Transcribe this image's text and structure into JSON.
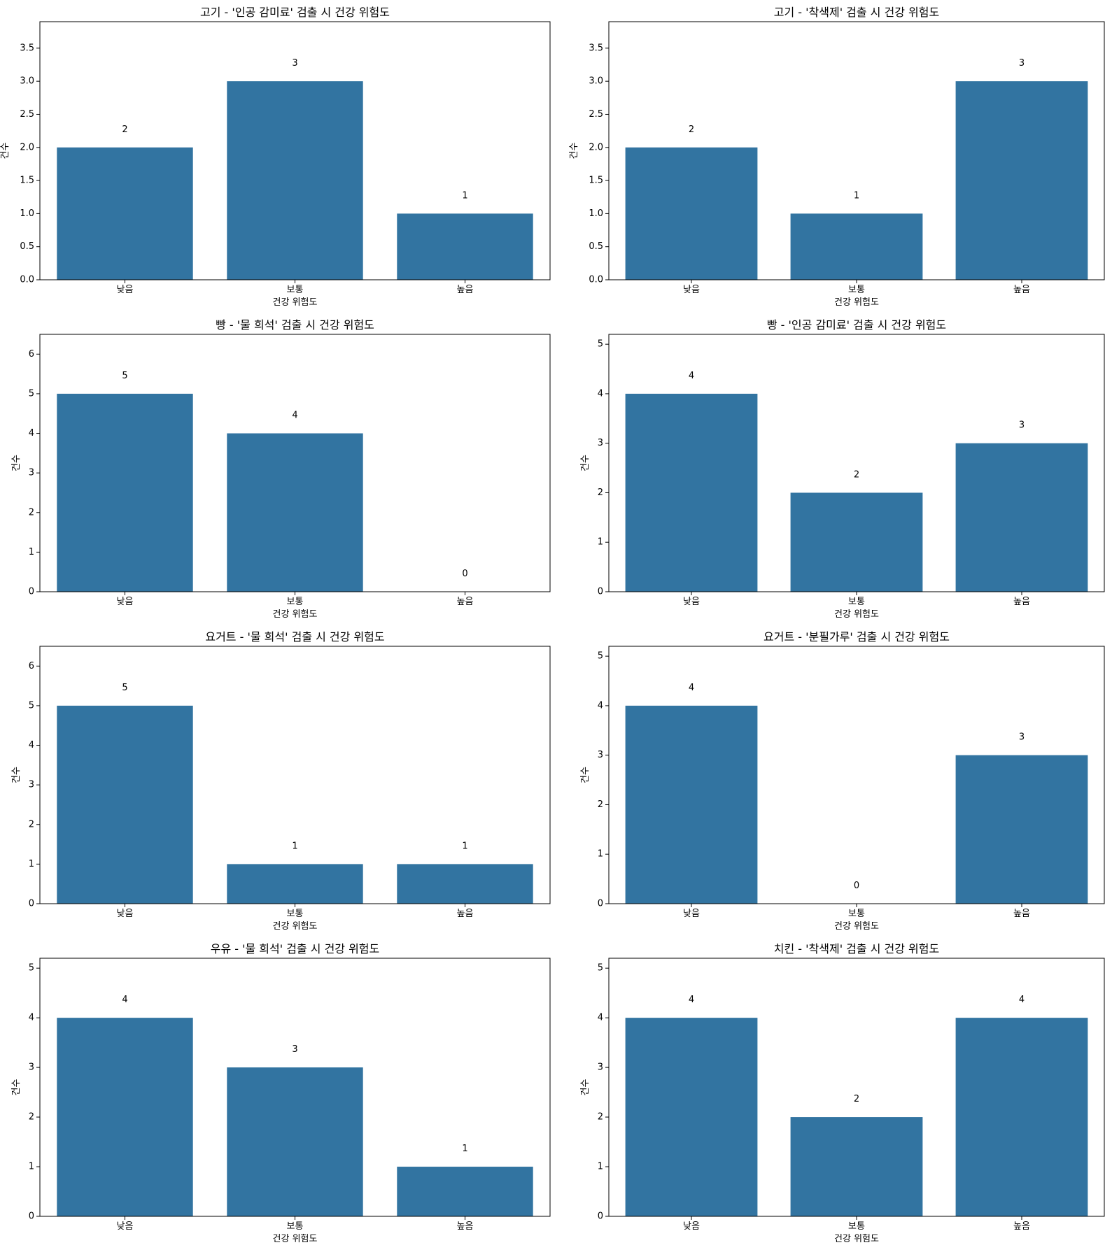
{
  "bar_color": "#3274a1",
  "chart_data": [
    {
      "type": "bar",
      "title": "고기 - '인공 감미료' 검출 시 건강 위험도",
      "xlabel": "건강 위험도",
      "ylabel": "건수",
      "categories": [
        "낮음",
        "보통",
        "높음"
      ],
      "values": [
        2,
        3,
        1
      ],
      "ylim": [
        0,
        3.9
      ],
      "yticks": [
        0,
        0.5,
        1,
        1.5,
        2,
        2.5,
        3,
        3.5
      ],
      "ytick_labels": [
        "0.0",
        "0.5",
        "1.0",
        "1.5",
        "2.0",
        "2.5",
        "3.0",
        "3.5"
      ],
      "data_labels": [
        "2",
        "3",
        "1"
      ]
    },
    {
      "type": "bar",
      "title": "고기 - '착색제' 검출 시 건강 위험도",
      "xlabel": "건강 위험도",
      "ylabel": "건수",
      "categories": [
        "낮음",
        "보통",
        "높음"
      ],
      "values": [
        2,
        1,
        3
      ],
      "ylim": [
        0,
        3.9
      ],
      "yticks": [
        0,
        0.5,
        1,
        1.5,
        2,
        2.5,
        3,
        3.5
      ],
      "ytick_labels": [
        "0.0",
        "0.5",
        "1.0",
        "1.5",
        "2.0",
        "2.5",
        "3.0",
        "3.5"
      ],
      "data_labels": [
        "2",
        "1",
        "3"
      ]
    },
    {
      "type": "bar",
      "title": "빵 - '물 희석' 검출 시 건강 위험도",
      "xlabel": "건강 위험도",
      "ylabel": "건수",
      "categories": [
        "낮음",
        "보통",
        "높음"
      ],
      "values": [
        5,
        4,
        0
      ],
      "ylim": [
        0,
        6.5
      ],
      "yticks": [
        0,
        1,
        2,
        3,
        4,
        5,
        6
      ],
      "ytick_labels": [
        "0",
        "1",
        "2",
        "3",
        "4",
        "5",
        "6"
      ],
      "data_labels": [
        "5",
        "4",
        "0"
      ]
    },
    {
      "type": "bar",
      "title": "빵 - '인공 감미료' 검출 시 건강 위험도",
      "xlabel": "건강 위험도",
      "ylabel": "건수",
      "categories": [
        "낮음",
        "보통",
        "높음"
      ],
      "values": [
        4,
        2,
        3
      ],
      "ylim": [
        0,
        5.2
      ],
      "yticks": [
        0,
        1,
        2,
        3,
        4,
        5
      ],
      "ytick_labels": [
        "0",
        "1",
        "2",
        "3",
        "4",
        "5"
      ],
      "data_labels": [
        "4",
        "2",
        "3"
      ]
    },
    {
      "type": "bar",
      "title": "요거트 - '물 희석' 검출 시 건강 위험도",
      "xlabel": "건강 위험도",
      "ylabel": "건수",
      "categories": [
        "낮음",
        "보통",
        "높음"
      ],
      "values": [
        5,
        1,
        1
      ],
      "ylim": [
        0,
        6.5
      ],
      "yticks": [
        0,
        1,
        2,
        3,
        4,
        5,
        6
      ],
      "ytick_labels": [
        "0",
        "1",
        "2",
        "3",
        "4",
        "5",
        "6"
      ],
      "data_labels": [
        "5",
        "1",
        "1"
      ]
    },
    {
      "type": "bar",
      "title": "요거트 - '분필가루' 검출 시 건강 위험도",
      "xlabel": "건강 위험도",
      "ylabel": "건수",
      "categories": [
        "낮음",
        "보통",
        "높음"
      ],
      "values": [
        4,
        0,
        3
      ],
      "ylim": [
        0,
        5.2
      ],
      "yticks": [
        0,
        1,
        2,
        3,
        4,
        5
      ],
      "ytick_labels": [
        "0",
        "1",
        "2",
        "3",
        "4",
        "5"
      ],
      "data_labels": [
        "4",
        "0",
        "3"
      ]
    },
    {
      "type": "bar",
      "title": "우유 - '물 희석' 검출 시 건강 위험도",
      "xlabel": "건강 위험도",
      "ylabel": "건수",
      "categories": [
        "낮음",
        "보통",
        "높음"
      ],
      "values": [
        4,
        3,
        1
      ],
      "ylim": [
        0,
        5.2
      ],
      "yticks": [
        0,
        1,
        2,
        3,
        4,
        5
      ],
      "ytick_labels": [
        "0",
        "1",
        "2",
        "3",
        "4",
        "5"
      ],
      "data_labels": [
        "4",
        "3",
        "1"
      ]
    },
    {
      "type": "bar",
      "title": "치킨 - '착색제' 검출 시 건강 위험도",
      "xlabel": "건강 위험도",
      "ylabel": "건수",
      "categories": [
        "낮음",
        "보통",
        "높음"
      ],
      "values": [
        4,
        2,
        4
      ],
      "ylim": [
        0,
        5.2
      ],
      "yticks": [
        0,
        1,
        2,
        3,
        4,
        5
      ],
      "ytick_labels": [
        "0",
        "1",
        "2",
        "3",
        "4",
        "5"
      ],
      "data_labels": [
        "4",
        "2",
        "4"
      ]
    }
  ]
}
